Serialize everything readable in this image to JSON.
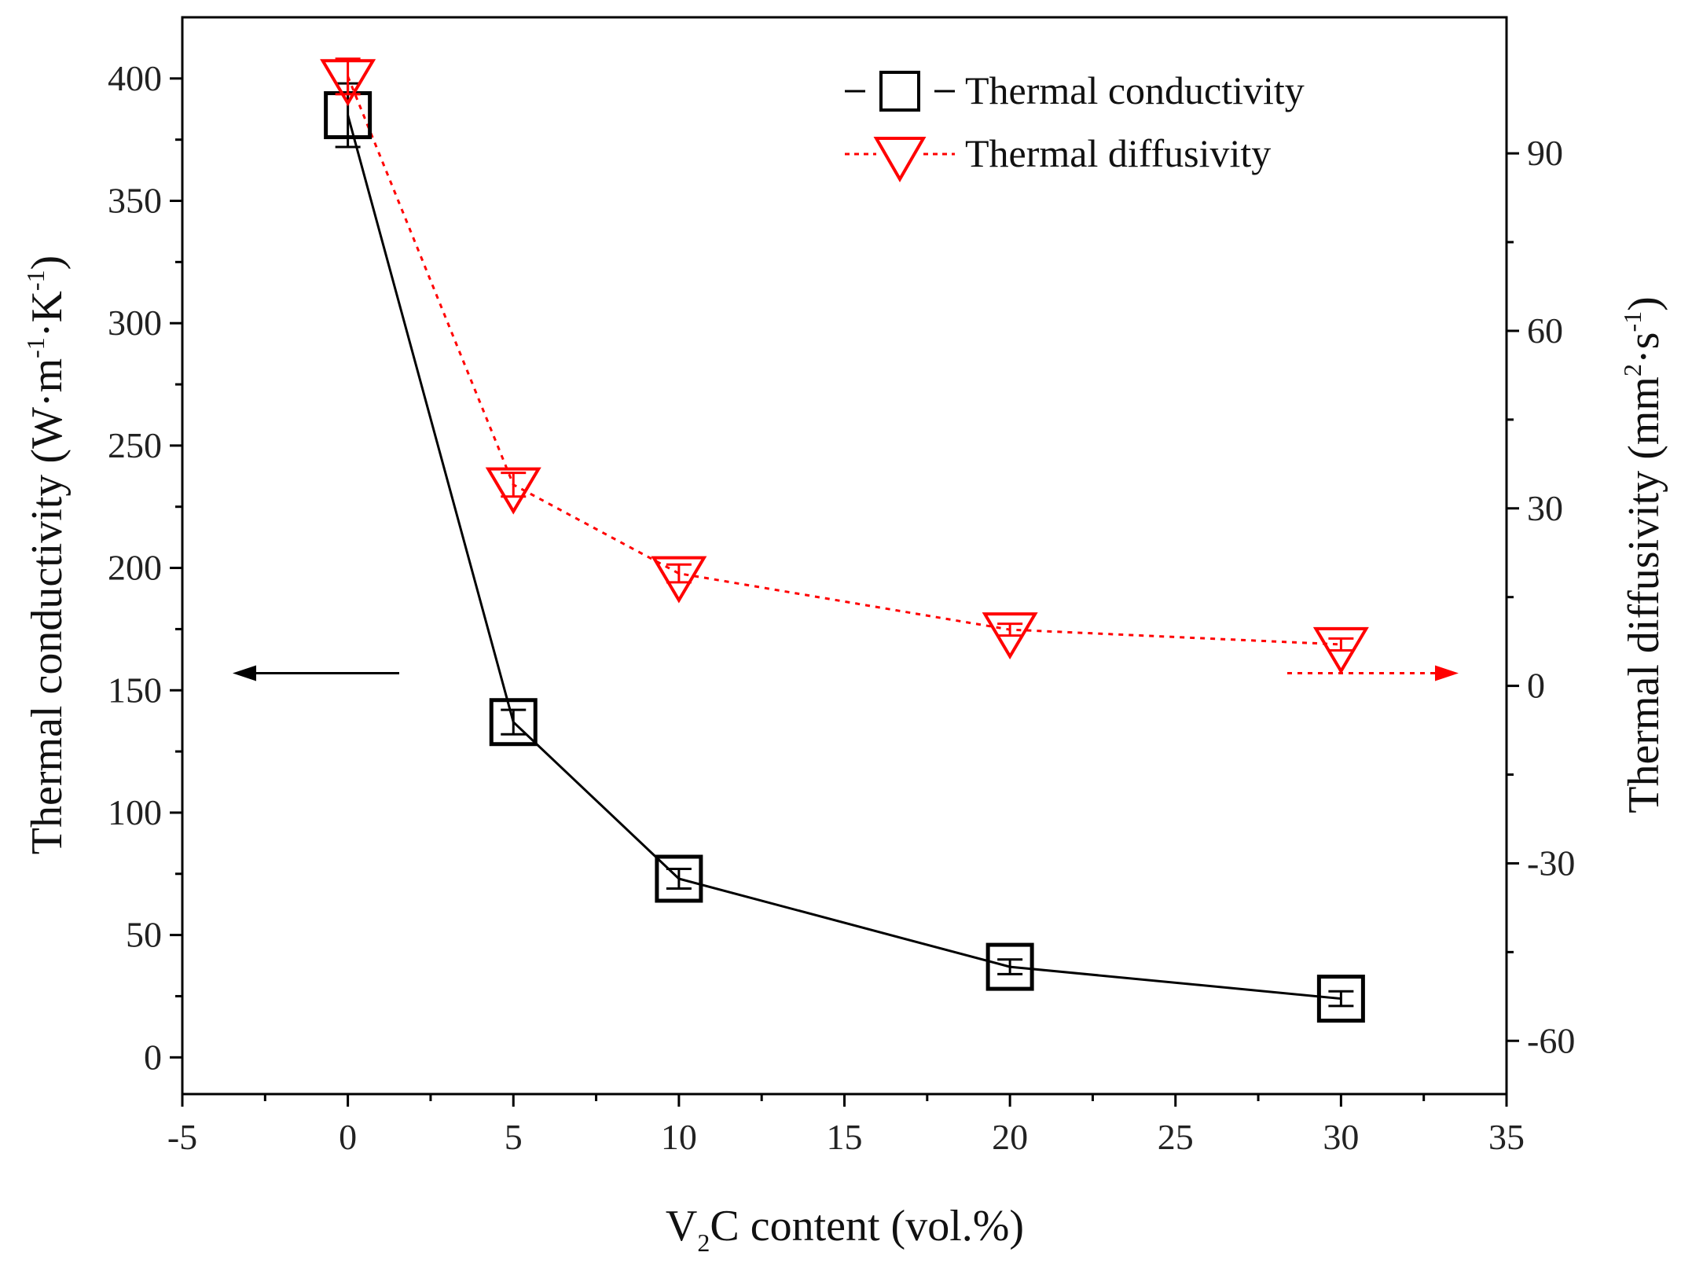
{
  "chart_data": {
    "type": "line",
    "x_axis": {
      "label_main": "V",
      "label_subscript": "2",
      "label_rest": "C content (vol.%)",
      "range": [
        -5,
        35
      ],
      "ticks": [
        -5,
        0,
        5,
        10,
        15,
        20,
        25,
        30,
        35
      ]
    },
    "y_left": {
      "label_main": "Thermal conductivity (W·m",
      "label_sup1": "-1",
      "label_mid": "·K",
      "label_sup2": "-1",
      "label_end": ")",
      "range": [
        -15,
        425
      ],
      "ticks": [
        0,
        50,
        100,
        150,
        200,
        250,
        300,
        350,
        400
      ]
    },
    "y_right": {
      "label_main": "Thermal diffusivity (mm",
      "label_sup1": "2",
      "label_mid": "·s",
      "label_sup2": "-1",
      "label_end": ")",
      "range": [
        -69,
        113
      ],
      "ticks": [
        -60,
        -30,
        0,
        30,
        60,
        90
      ]
    },
    "series": [
      {
        "name": "Thermal conductivity",
        "axis": "left",
        "color": "#000000",
        "marker": "square",
        "line": "solid",
        "x": [
          0,
          5,
          10,
          20,
          30
        ],
        "y": [
          385,
          137,
          73,
          37,
          24
        ],
        "err": [
          13,
          5,
          4,
          3,
          3
        ]
      },
      {
        "name": "Thermal diffusivity",
        "axis": "right",
        "color": "#ff0000",
        "marker": "triangle-down",
        "line": "dotted",
        "x": [
          0,
          5,
          10,
          20,
          30
        ],
        "y": [
          103,
          34,
          19,
          9.5,
          7
        ],
        "err": [
          3,
          2,
          1.5,
          1,
          1
        ]
      }
    ],
    "legend": [
      "Thermal conductivity",
      "Thermal diffusivity"
    ],
    "legend_position": "top-right",
    "annotations": [
      {
        "type": "arrow",
        "direction": "left",
        "points_to": "left axis",
        "color": "#000000"
      },
      {
        "type": "arrow",
        "direction": "right",
        "points_to": "right axis",
        "color": "#ff0000"
      }
    ]
  }
}
